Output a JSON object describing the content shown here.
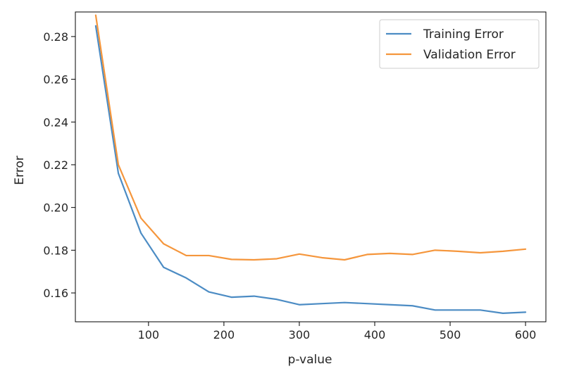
{
  "chart_data": {
    "type": "line",
    "xlabel": "p-value",
    "ylabel": "Error",
    "xlim": [
      3,
      627
    ],
    "ylim": [
      0.1465,
      0.2915
    ],
    "xticks": [
      100,
      200,
      300,
      400,
      500,
      600
    ],
    "yticks": [
      0.16,
      0.18,
      0.2,
      0.22,
      0.24,
      0.26,
      0.28
    ],
    "xtick_labels": [
      "100",
      "200",
      "300",
      "400",
      "500",
      "600"
    ],
    "ytick_labels": [
      "0.16",
      "0.18",
      "0.20",
      "0.22",
      "0.24",
      "0.26",
      "0.28"
    ],
    "grid": false,
    "legend_position": "top-right",
    "x": [
      30,
      60,
      90,
      120,
      150,
      180,
      210,
      240,
      270,
      300,
      330,
      360,
      390,
      420,
      450,
      480,
      510,
      540,
      570,
      600
    ],
    "series": [
      {
        "name": "Training Error",
        "color": "#4c8cc4",
        "values": [
          0.285,
          0.216,
          0.188,
          0.172,
          0.167,
          0.1605,
          0.158,
          0.1585,
          0.157,
          0.1545,
          0.155,
          0.1555,
          0.155,
          0.1545,
          0.154,
          0.152,
          0.152,
          0.152,
          0.1505,
          0.151
        ]
      },
      {
        "name": "Validation Error",
        "color": "#f5963c",
        "values": [
          0.29,
          0.22,
          0.195,
          0.183,
          0.1775,
          0.1775,
          0.1757,
          0.1755,
          0.176,
          0.1782,
          0.1765,
          0.1755,
          0.178,
          0.1785,
          0.178,
          0.18,
          0.1795,
          0.1788,
          0.1795,
          0.1805
        ]
      }
    ]
  }
}
